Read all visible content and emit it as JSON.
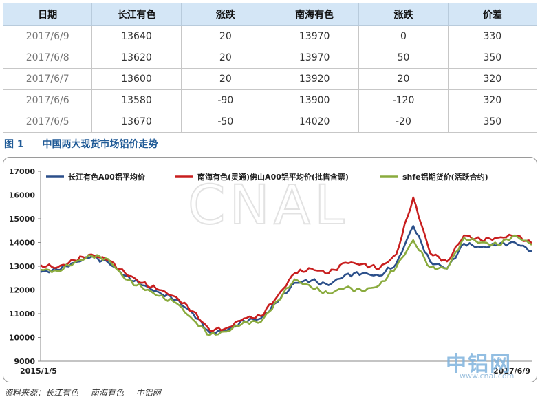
{
  "table": {
    "headers": [
      "日期",
      "长江有色",
      "涨跌",
      "南海有色",
      "涨跌",
      "价差"
    ],
    "rows": [
      [
        "2017/6/9",
        "13640",
        "20",
        "13970",
        "0",
        "330"
      ],
      [
        "2017/6/8",
        "13620",
        "20",
        "13970",
        "50",
        "350"
      ],
      [
        "2017/6/7",
        "13600",
        "20",
        "13920",
        "20",
        "320"
      ],
      [
        "2017/6/6",
        "13580",
        "-90",
        "13900",
        "-120",
        "320"
      ],
      [
        "2017/6/5",
        "13670",
        "-50",
        "14020",
        "-20",
        "350"
      ]
    ]
  },
  "figure": {
    "number": "图 1",
    "title": "中国两大现货市场铝价走势"
  },
  "watermark": {
    "text": "CNAL",
    "logo_text": "中铝网",
    "url": "www.cnal.com"
  },
  "source": {
    "label": "资料来源：长江有色",
    "items": [
      "南海有色",
      "中铝网"
    ]
  },
  "colors": {
    "header_bg": "#d4e6f6",
    "caption": "#1f5a96",
    "series_changjiang": "#2b4f8a",
    "series_nanhai": "#c81e1e",
    "series_shfe": "#8aab3e"
  },
  "chart_data": {
    "type": "line",
    "title": "",
    "xlabel": "",
    "ylabel": "",
    "x_start_label": "2015/1/5",
    "x_end_label": "2017/6/9",
    "ylim": [
      9000,
      17000
    ],
    "yticks": [
      "9000",
      "10000",
      "11000",
      "12000",
      "13000",
      "14000",
      "15000",
      "16000",
      "17000"
    ],
    "grid": false,
    "legend_position": "top",
    "x": [
      "2015/1",
      "2015/2",
      "2015/3",
      "2015/4",
      "2015/5",
      "2015/6",
      "2015/7",
      "2015/8",
      "2015/9",
      "2015/10",
      "2015/11",
      "2015/12",
      "2016/1",
      "2016/2",
      "2016/3",
      "2016/4",
      "2016/5",
      "2016/6",
      "2016/7",
      "2016/8",
      "2016/9",
      "2016/10",
      "2016/11",
      "2016/12",
      "2017/1",
      "2017/2",
      "2017/3",
      "2017/4",
      "2017/5",
      "2017/6"
    ],
    "series": [
      {
        "name": "长江有色A00铝平均价",
        "color": "#2b4f8a",
        "values": [
          12750,
          12850,
          13150,
          13400,
          13150,
          12600,
          12200,
          11900,
          11600,
          11000,
          10200,
          10300,
          10700,
          10800,
          11500,
          12300,
          12400,
          12200,
          12650,
          12700,
          12600,
          13100,
          14700,
          13200,
          12900,
          13950,
          13800,
          13900,
          14000,
          13650
        ]
      },
      {
        "name": "南海有色(灵通)佛山A00铝平均价(批售含票)",
        "color": "#c81e1e",
        "values": [
          13050,
          12950,
          13250,
          13500,
          13250,
          12700,
          12300,
          12000,
          11700,
          11100,
          10300,
          10400,
          10800,
          10900,
          11750,
          12700,
          12900,
          12700,
          13150,
          13100,
          12900,
          13500,
          15900,
          13550,
          13200,
          14300,
          14100,
          14200,
          14300,
          13970
        ]
      },
      {
        "name": "shfe铝期货价(活跃合约)",
        "color": "#8aab3e",
        "values": [
          12850,
          12800,
          13150,
          13450,
          13300,
          12450,
          12100,
          11750,
          11450,
          10750,
          10100,
          10250,
          10650,
          10650,
          11550,
          12450,
          12100,
          11850,
          12100,
          11950,
          12200,
          12950,
          14100,
          12950,
          12900,
          14200,
          14000,
          13900,
          14300,
          13900
        ]
      }
    ]
  }
}
